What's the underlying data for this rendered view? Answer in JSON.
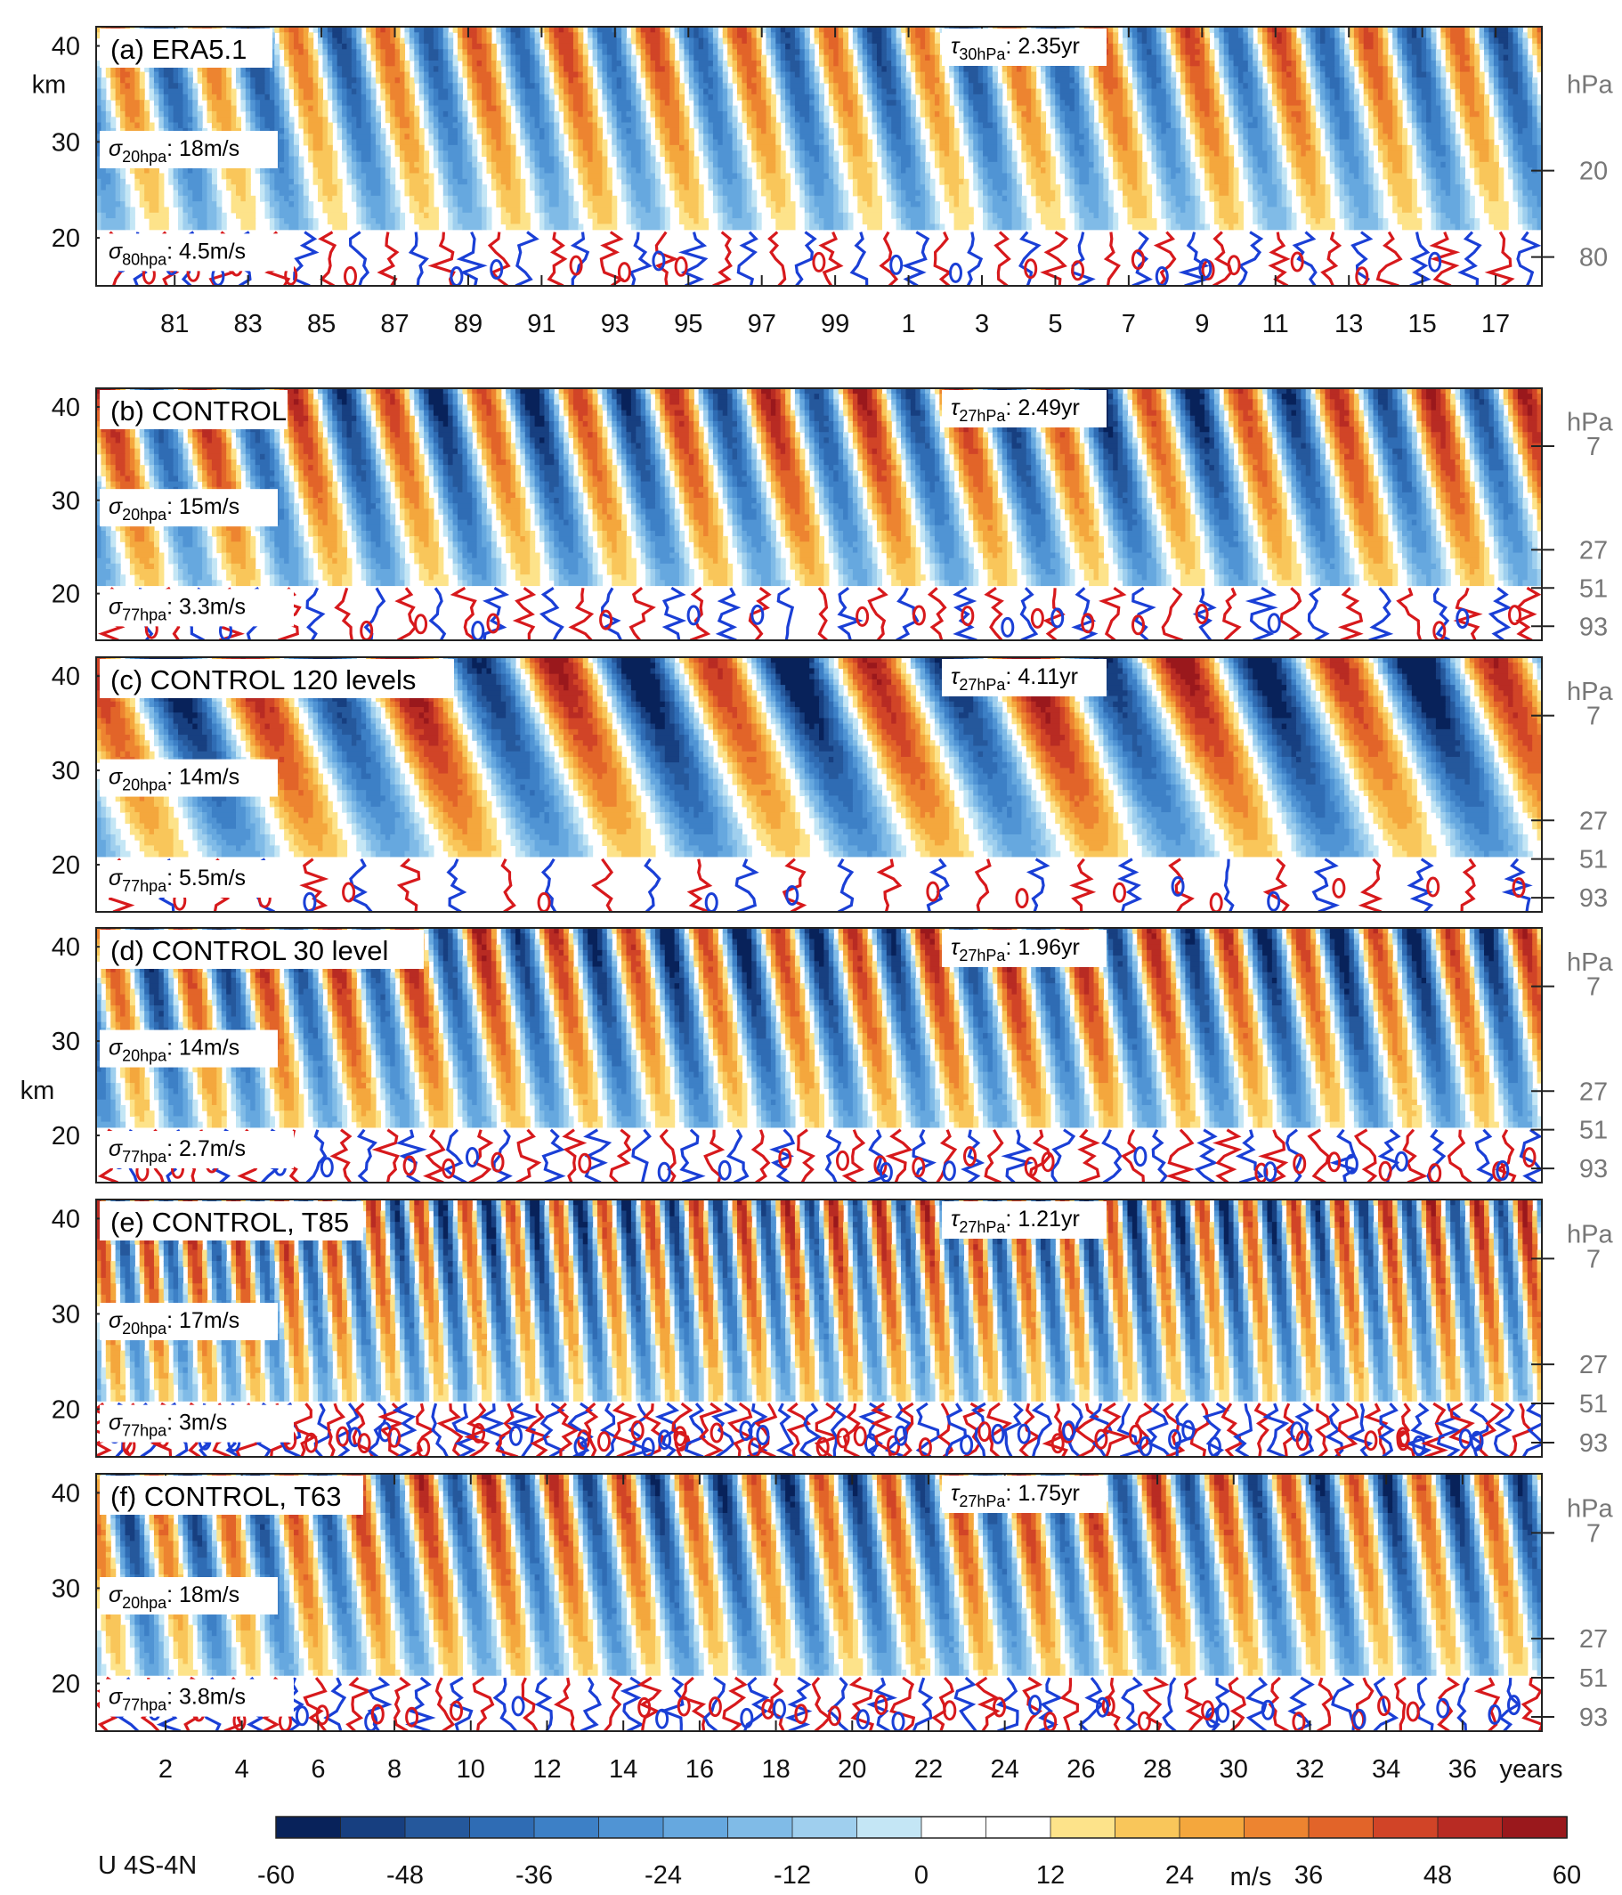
{
  "colorbar": {
    "label": "U 4S-4N",
    "unit": "m/s",
    "ticks": [
      "-60",
      "-48",
      "-36",
      "-24",
      "-12",
      "0",
      "12",
      "24",
      "36",
      "48",
      "60"
    ],
    "levels": [
      -60,
      -54,
      -48,
      -42,
      -36,
      -30,
      -24,
      -18,
      -12,
      -6,
      0,
      6,
      12,
      18,
      24,
      30,
      36,
      42,
      48,
      54,
      60
    ],
    "colors": [
      "#08225a",
      "#173f80",
      "#25589c",
      "#2f6cb4",
      "#3d80c6",
      "#5094d4",
      "#66a8df",
      "#80bbe7",
      "#9fcfee",
      "#c4e6f5",
      "#ffffff",
      "#ffffff",
      "#fde38a",
      "#f9c65a",
      "#f4a73d",
      "#ed8430",
      "#e26429",
      "#d14427",
      "#b82b23",
      "#9a181c"
    ]
  },
  "axes": {
    "left_label_km": "km",
    "right_label_hpa": "hPa",
    "x_label_years": "years"
  },
  "chart_data": [
    {
      "type": "heatmap",
      "panel": "(a) ERA5.1",
      "title": "(a) ERA5.1",
      "period_stat": {
        "symbol": "τ",
        "sub": "30hPa",
        "value": ": 2.35yr"
      },
      "sigma_upper": {
        "symbol": "σ",
        "sub": "20hpa",
        "value": ": 18m/s"
      },
      "sigma_lower": {
        "symbol": "σ",
        "sub": "80hpa",
        "value": ": 4.5m/s"
      },
      "y_ticks_km": [
        "20",
        "30",
        "40"
      ],
      "y_ticks_hpa": [
        "20",
        "80"
      ],
      "x_ticks": [
        "81",
        "83",
        "85",
        "87",
        "89",
        "91",
        "93",
        "95",
        "97",
        "99",
        "1",
        "3",
        "5",
        "7",
        "9",
        "11",
        "13",
        "15",
        "17"
      ],
      "ylim_km": [
        15,
        42
      ],
      "period_years": 2.35
    },
    {
      "type": "heatmap",
      "panel": "(b) CONTROL",
      "title": "(b) CONTROL",
      "period_stat": {
        "symbol": "τ",
        "sub": "27hPa",
        "value": ": 2.49yr"
      },
      "sigma_upper": {
        "symbol": "σ",
        "sub": "20hpa",
        "value": ": 15m/s"
      },
      "sigma_lower": {
        "symbol": "σ",
        "sub": "77hpa",
        "value": ": 3.3m/s"
      },
      "y_ticks_km": [
        "20",
        "30",
        "40"
      ],
      "y_ticks_hpa": [
        "7",
        "27",
        "51",
        "93"
      ],
      "ylim_km": [
        15,
        42
      ],
      "period_years": 2.49
    },
    {
      "type": "heatmap",
      "panel": "(c) CONTROL 120 levels",
      "title": "(c) CONTROL 120 levels",
      "period_stat": {
        "symbol": "τ",
        "sub": "27hPa",
        "value": ": 4.11yr"
      },
      "sigma_upper": {
        "symbol": "σ",
        "sub": "20hpa",
        "value": ": 14m/s"
      },
      "sigma_lower": {
        "symbol": "σ",
        "sub": "77hpa",
        "value": ": 5.5m/s"
      },
      "y_ticks_km": [
        "20",
        "30",
        "40"
      ],
      "y_ticks_hpa": [
        "7",
        "27",
        "51",
        "93"
      ],
      "ylim_km": [
        15,
        42
      ],
      "period_years": 4.11
    },
    {
      "type": "heatmap",
      "panel": "(d) CONTROL 30 level",
      "title": "(d) CONTROL 30 level",
      "period_stat": {
        "symbol": "τ",
        "sub": "27hPa",
        "value": ": 1.96yr"
      },
      "sigma_upper": {
        "symbol": "σ",
        "sub": "20hpa",
        "value": ": 14m/s"
      },
      "sigma_lower": {
        "symbol": "σ",
        "sub": "77hpa",
        "value": ": 2.7m/s"
      },
      "y_ticks_km": [
        "20",
        "30",
        "40"
      ],
      "y_ticks_hpa": [
        "7",
        "27",
        "51",
        "93"
      ],
      "ylim_km": [
        15,
        42
      ],
      "period_years": 1.96
    },
    {
      "type": "heatmap",
      "panel": "(e) CONTROL, T85",
      "title": "(e) CONTROL, T85",
      "period_stat": {
        "symbol": "τ",
        "sub": "27hPa",
        "value": ": 1.21yr"
      },
      "sigma_upper": {
        "symbol": "σ",
        "sub": "20hpa",
        "value": ": 17m/s"
      },
      "sigma_lower": {
        "symbol": "σ",
        "sub": "77hpa",
        "value": ": 3m/s"
      },
      "y_ticks_km": [
        "20",
        "30",
        "40"
      ],
      "y_ticks_hpa": [
        "7",
        "27",
        "51",
        "93"
      ],
      "ylim_km": [
        15,
        42
      ],
      "period_years": 1.21
    },
    {
      "type": "heatmap",
      "panel": "(f) CONTROL, T63",
      "title": "(f) CONTROL, T63",
      "period_stat": {
        "symbol": "τ",
        "sub": "27hPa",
        "value": ": 1.75yr"
      },
      "sigma_upper": {
        "symbol": "σ",
        "sub": "20hpa",
        "value": ": 18m/s"
      },
      "sigma_lower": {
        "symbol": "σ",
        "sub": "77hpa",
        "value": ": 3.8m/s"
      },
      "y_ticks_km": [
        "20",
        "30",
        "40"
      ],
      "y_ticks_hpa": [
        "7",
        "27",
        "51",
        "93"
      ],
      "x_ticks": [
        "2",
        "4",
        "6",
        "8",
        "10",
        "12",
        "14",
        "16",
        "18",
        "20",
        "22",
        "24",
        "26",
        "28",
        "30",
        "32",
        "34",
        "36"
      ],
      "ylim_km": [
        15,
        42
      ],
      "period_years": 1.75
    }
  ]
}
